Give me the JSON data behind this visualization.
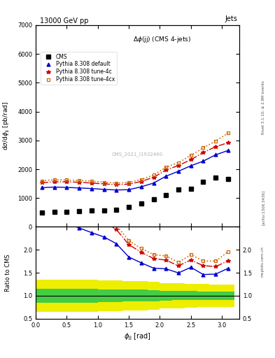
{
  "title_top": "13000 GeV pp",
  "title_right": "Jets",
  "plot_title": "Δϕ(jj) (CMS 4-jets)",
  "ylabel_main": "dσ/dϕ$_{\\rm jj}$ [pb/rad]",
  "ylabel_ratio": "Ratio to CMS",
  "xlabel": "ϕ$_{\\rm jj}$ [rad]",
  "watermark": "CMS_2021_I1932460",
  "right_label": "Rivet 3.1.10; ≥ 2.8M events",
  "arxiv_label": "[arXiv:1306.3436]",
  "mcplots_label": "mcplots.cern.ch",
  "ylim_main": [
    0,
    7000
  ],
  "ylim_ratio": [
    0.5,
    2.5
  ],
  "yticks_main": [
    0,
    1000,
    2000,
    3000,
    4000,
    5000,
    6000,
    7000
  ],
  "yticks_ratio": [
    0.5,
    1.0,
    1.5,
    2.0
  ],
  "cms_x": [
    0.1,
    0.3,
    0.5,
    0.7,
    0.9,
    1.1,
    1.3,
    1.5,
    1.7,
    1.9,
    2.1,
    2.3,
    2.5,
    2.7,
    2.9,
    3.1
  ],
  "cms_data": [
    500,
    510,
    530,
    545,
    560,
    570,
    600,
    700,
    810,
    950,
    1110,
    1290,
    1310,
    1560,
    1700,
    1660
  ],
  "cms_err_yellow": [
    0.35,
    0.35,
    0.35,
    0.35,
    0.35,
    0.33,
    0.33,
    0.32,
    0.32,
    0.3,
    0.28,
    0.27,
    0.26,
    0.25,
    0.24,
    0.24
  ],
  "cms_err_green": [
    0.15,
    0.15,
    0.15,
    0.15,
    0.15,
    0.14,
    0.14,
    0.13,
    0.13,
    0.12,
    0.11,
    0.1,
    0.1,
    0.09,
    0.09,
    0.09
  ],
  "pythia_x": [
    0.1,
    0.3,
    0.5,
    0.7,
    0.9,
    1.1,
    1.3,
    1.5,
    1.7,
    1.9,
    2.1,
    2.3,
    2.5,
    2.7,
    2.9,
    3.1
  ],
  "pythia_default_y": [
    1360,
    1380,
    1370,
    1350,
    1330,
    1300,
    1280,
    1290,
    1390,
    1520,
    1760,
    1930,
    2120,
    2280,
    2500,
    2650
  ],
  "pythia_4c_y": [
    1530,
    1565,
    1560,
    1550,
    1520,
    1490,
    1465,
    1480,
    1575,
    1720,
    1970,
    2130,
    2330,
    2580,
    2780,
    2920
  ],
  "pythia_4cx_y": [
    1600,
    1635,
    1625,
    1615,
    1585,
    1550,
    1520,
    1540,
    1645,
    1800,
    2070,
    2230,
    2480,
    2740,
    2980,
    3250
  ],
  "color_default": "#0000cc",
  "color_4c": "#cc0000",
  "color_4cx": "#cc6600",
  "color_cms": "#000000",
  "color_green": "#44cc44",
  "color_yellow": "#eeee00"
}
